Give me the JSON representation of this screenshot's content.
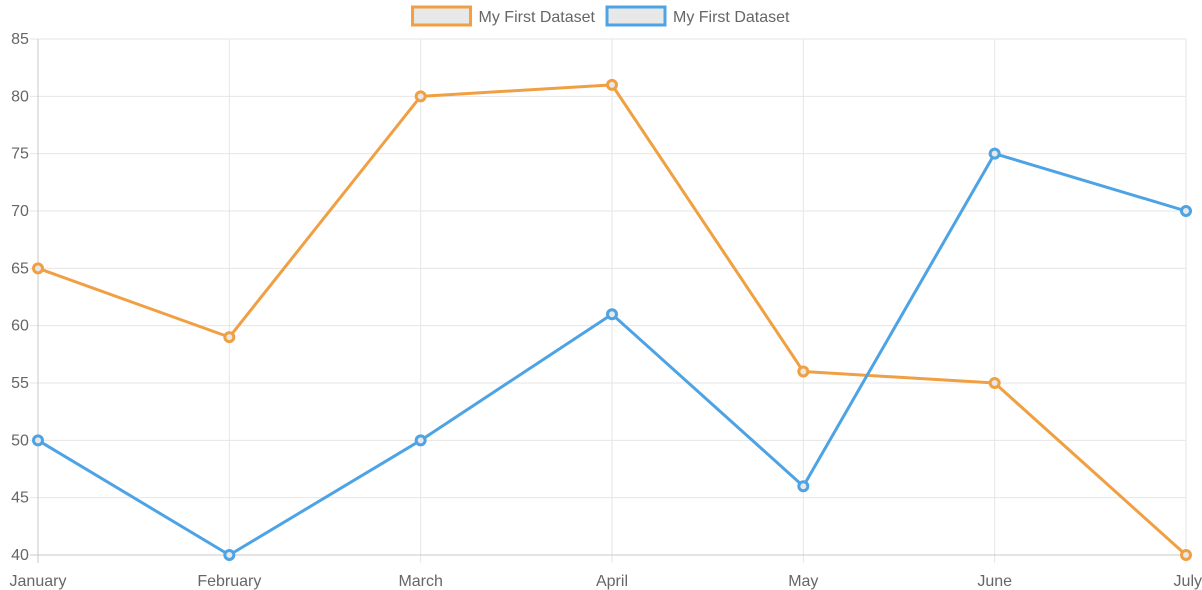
{
  "chart_data": {
    "type": "line",
    "title": "",
    "xlabel": "",
    "ylabel": "",
    "categories": [
      "January",
      "February",
      "March",
      "April",
      "May",
      "June",
      "July"
    ],
    "ylim": [
      40,
      85
    ],
    "yticks": [
      40,
      45,
      50,
      55,
      60,
      65,
      70,
      75,
      80,
      85
    ],
    "grid": true,
    "legend_position": "top",
    "series": [
      {
        "name": "My First Dataset",
        "color": "#f0a043",
        "legend_fill": "#e8e8e8",
        "values": [
          65,
          59,
          80,
          81,
          56,
          55,
          40
        ]
      },
      {
        "name": "My First Dataset",
        "color": "#4da3e4",
        "legend_fill": "#e8e8e8",
        "values": [
          50,
          40,
          50,
          61,
          46,
          75,
          70
        ]
      }
    ]
  }
}
